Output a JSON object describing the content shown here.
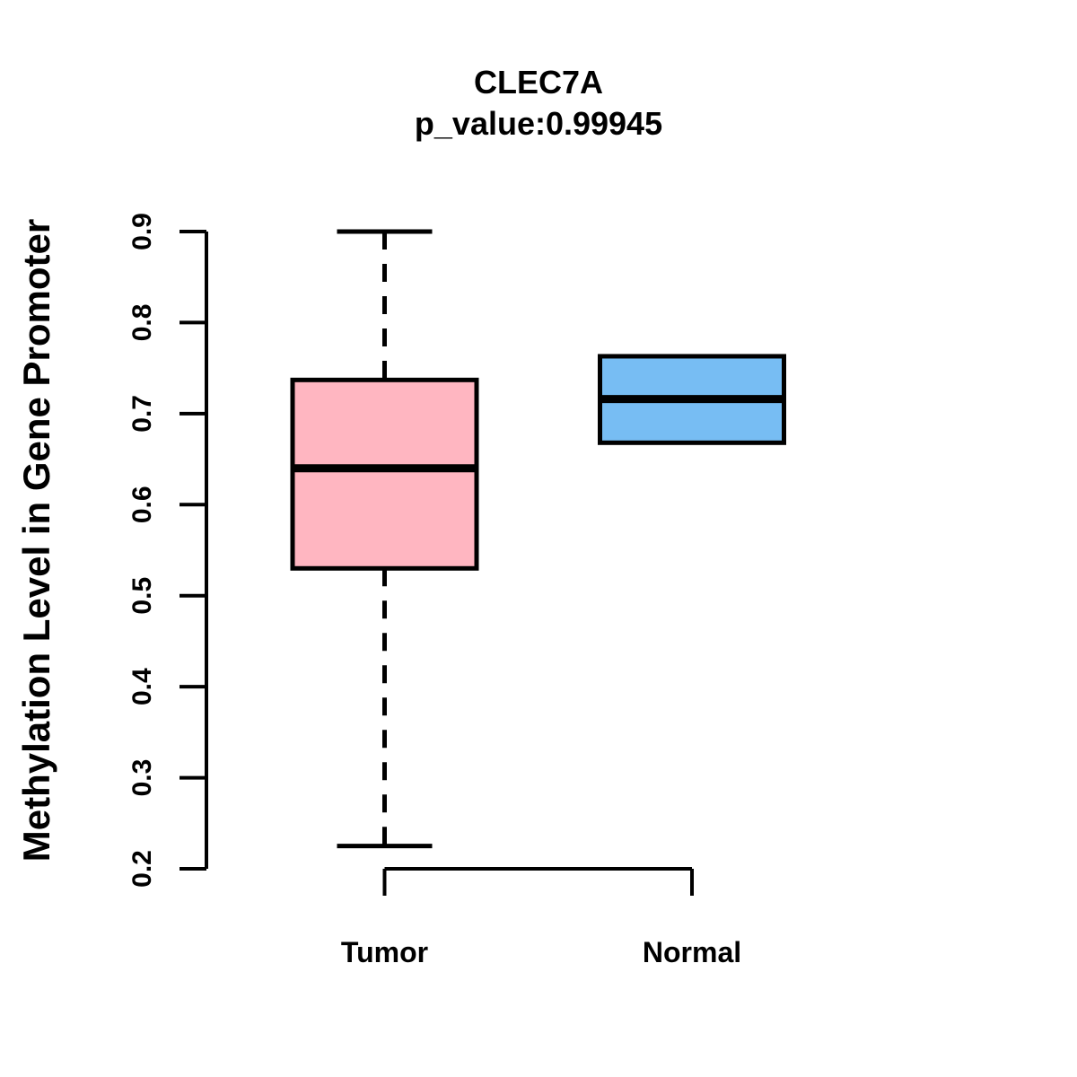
{
  "chart_data": {
    "type": "boxplot",
    "title": "CLEC7A",
    "subtitle": "p_value:0.99945",
    "ylabel": "Methylation Level in Gene Promoter",
    "xlabel": "",
    "ylim": [
      0.2,
      0.9
    ],
    "yticks": [
      "0.2",
      "0.3",
      "0.4",
      "0.5",
      "0.6",
      "0.7",
      "0.8",
      "0.9"
    ],
    "grid": false,
    "legend": "none",
    "categories": [
      "Tumor",
      "Normal"
    ],
    "series": [
      {
        "name": "Tumor",
        "fill_color": "#FFB6C1",
        "whisker_low": 0.225,
        "q1": 0.53,
        "median": 0.64,
        "q3": 0.737,
        "whisker_high": 0.9
      },
      {
        "name": "Normal",
        "fill_color": "#77BDF3",
        "whisker_low": 0.668,
        "q1": 0.668,
        "median": 0.716,
        "q3": 0.763,
        "whisker_high": 0.763
      }
    ],
    "stroke_color": "#000000",
    "background_color": "#FFFFFF"
  }
}
